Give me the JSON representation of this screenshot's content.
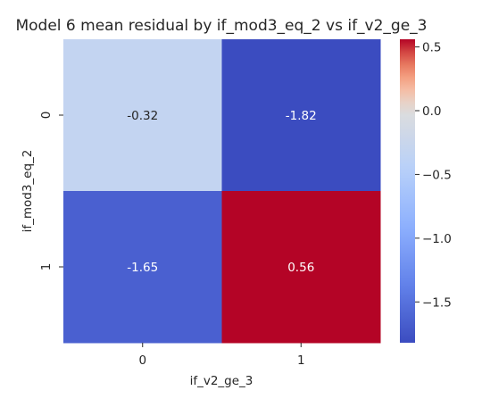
{
  "chart_data": {
    "type": "heatmap",
    "title": "Model 6 mean residual by if_mod3_eq_2 vs if_v2_ge_3",
    "xlabel": "if_v2_ge_3",
    "ylabel": "if_mod3_eq_2",
    "x_categories": [
      "0",
      "1"
    ],
    "y_categories": [
      "0",
      "1"
    ],
    "values": [
      [
        -0.32,
        -1.82
      ],
      [
        -1.65,
        0.56
      ]
    ],
    "cell_labels": [
      [
        "-0.32",
        "-1.82"
      ],
      [
        "-1.65",
        "0.56"
      ]
    ],
    "colormap": "coolwarm",
    "color_range": [
      -1.82,
      0.56
    ],
    "colorbar_ticks": [
      0.5,
      0.0,
      -0.5,
      -1.0,
      -1.5
    ],
    "colorbar_tick_labels": [
      "0.5",
      "0.0",
      "−0.5",
      "−1.0",
      "−1.5"
    ],
    "grid": false
  }
}
